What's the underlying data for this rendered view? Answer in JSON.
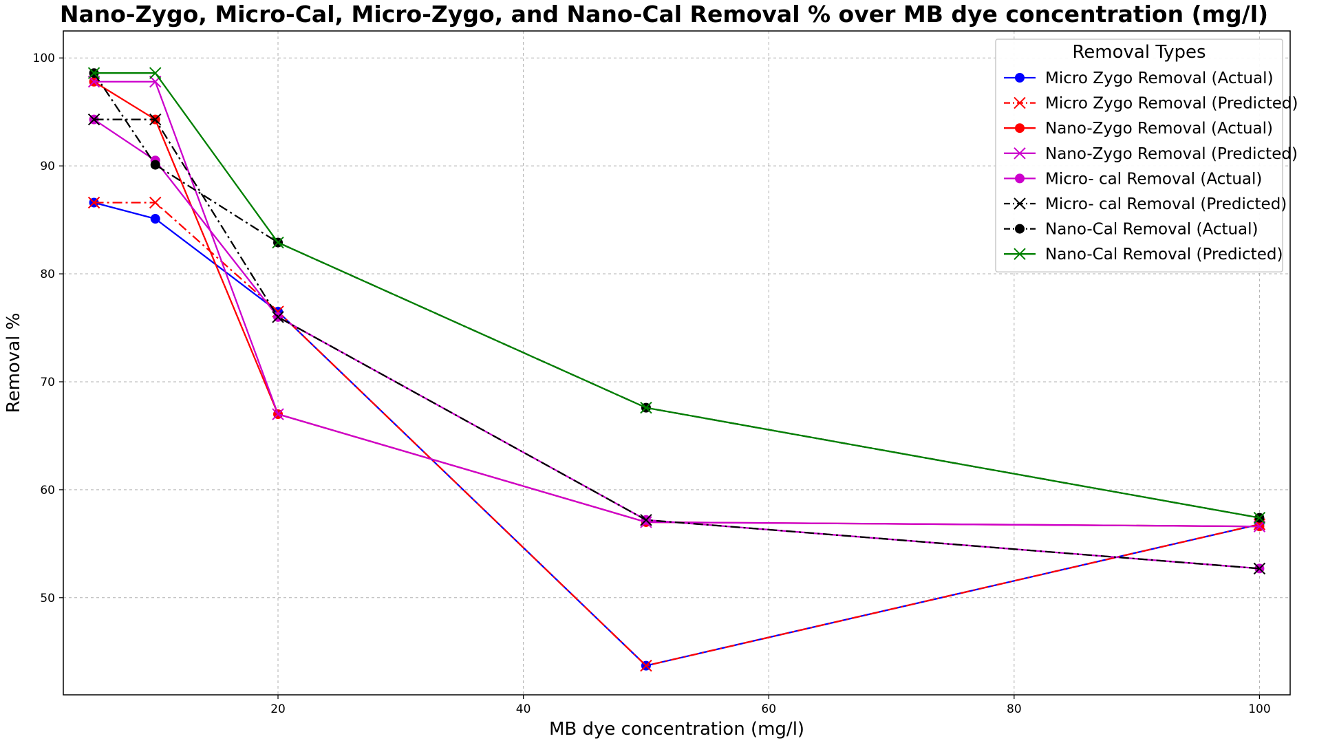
{
  "chart_data": {
    "type": "line",
    "title": "Nano-Zygo, Micro-Cal, Micro-Zygo, and  Nano-Cal Removal % over MB dye concentration (mg/l)",
    "xlabel": "MB dye concentration (mg/l)",
    "ylabel": "Removal %",
    "xlim": [
      2.5,
      102.5
    ],
    "ylim": [
      41,
      102.5
    ],
    "xticks": [
      20,
      40,
      60,
      80,
      100
    ],
    "yticks": [
      50,
      60,
      70,
      80,
      90,
      100
    ],
    "grid": true,
    "legend": {
      "title": "Removal Types",
      "position": "top-right"
    },
    "x": [
      5,
      10,
      20,
      50,
      100
    ],
    "series": [
      {
        "name": "Micro Zygo Removal (Actual)",
        "color": "#0000ff",
        "marker": "circle",
        "linestyle": "solid",
        "values": [
          86.6,
          85.1,
          76.5,
          43.7,
          56.8
        ]
      },
      {
        "name": "Micro Zygo Removal (Predicted)",
        "color": "#ff0000",
        "marker": "x",
        "linestyle": "dashdot",
        "values": [
          86.6,
          86.6,
          76.5,
          43.7,
          56.8
        ]
      },
      {
        "name": "Nano-Zygo Removal (Actual)",
        "color": "#ff0000",
        "marker": "circle",
        "linestyle": "solid",
        "values": [
          97.8,
          94.3,
          67.0,
          57.0,
          56.6
        ]
      },
      {
        "name": "Nano-Zygo Removal (Predicted)",
        "color": "#cc00cc",
        "marker": "x",
        "linestyle": "solid",
        "values": [
          97.8,
          97.8,
          67.0,
          57.0,
          56.6
        ]
      },
      {
        "name": "Micro- cal  Removal (Actual)",
        "color": "#cc00cc",
        "marker": "circle",
        "linestyle": "solid",
        "values": [
          94.3,
          90.5,
          76.0,
          57.2,
          52.7
        ]
      },
      {
        "name": "Micro- cal Removal (Predicted)",
        "color": "#000000",
        "marker": "x",
        "linestyle": "dashdot",
        "values": [
          94.3,
          94.3,
          76.0,
          57.2,
          52.7
        ]
      },
      {
        "name": "Nano-Cal Removal (Actual)",
        "color": "#000000",
        "marker": "circle",
        "linestyle": "dashdot",
        "values": [
          98.6,
          90.1,
          82.9,
          67.6,
          57.4
        ]
      },
      {
        "name": "Nano-Cal Removal (Predicted)",
        "color": "#008000",
        "marker": "x",
        "linestyle": "solid",
        "values": [
          98.6,
          98.6,
          82.9,
          67.6,
          57.4
        ]
      }
    ]
  }
}
